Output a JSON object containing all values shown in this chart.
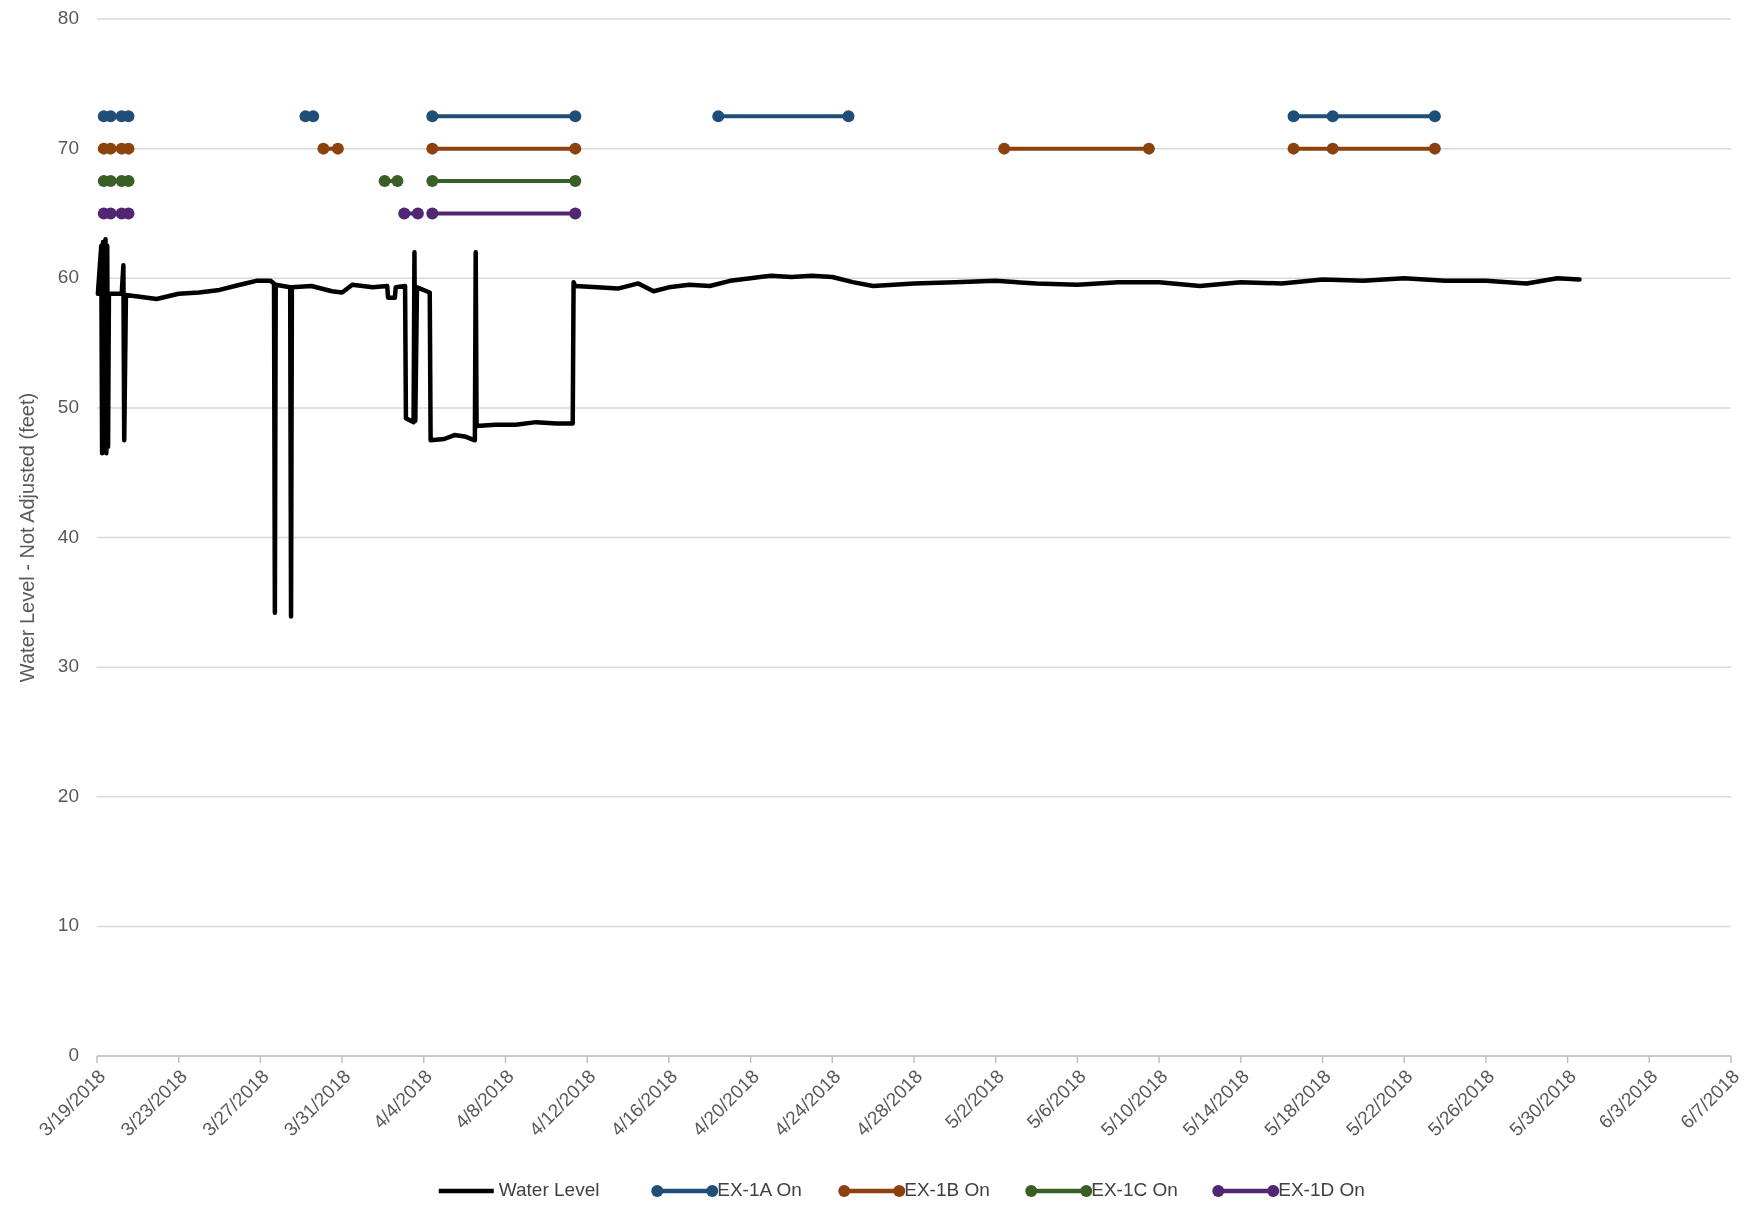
{
  "chart_data": {
    "type": "line",
    "ylabel": "Water Level - Not Adjusted  (feet)",
    "ylim": [
      0,
      80
    ],
    "yticks": [
      0,
      10,
      20,
      30,
      40,
      50,
      60,
      70,
      80
    ],
    "xlim": [
      "2018-03-19",
      "2018-06-07"
    ],
    "xticks": [
      {
        "value": "2018-03-19",
        "label": "3/19/2018"
      },
      {
        "value": "2018-03-23",
        "label": "3/23/2018"
      },
      {
        "value": "2018-03-27",
        "label": "3/27/2018"
      },
      {
        "value": "2018-03-31",
        "label": "3/31/2018"
      },
      {
        "value": "2018-04-04",
        "label": "4/4/2018"
      },
      {
        "value": "2018-04-08",
        "label": "4/8/2018"
      },
      {
        "value": "2018-04-12",
        "label": "4/12/2018"
      },
      {
        "value": "2018-04-16",
        "label": "4/16/2018"
      },
      {
        "value": "2018-04-20",
        "label": "4/20/2018"
      },
      {
        "value": "2018-04-24",
        "label": "4/24/2018"
      },
      {
        "value": "2018-04-28",
        "label": "4/28/2018"
      },
      {
        "value": "2018-05-02",
        "label": "5/2/2018"
      },
      {
        "value": "2018-05-06",
        "label": "5/6/2018"
      },
      {
        "value": "2018-05-10",
        "label": "5/10/2018"
      },
      {
        "value": "2018-05-14",
        "label": "5/14/2018"
      },
      {
        "value": "2018-05-18",
        "label": "5/18/2018"
      },
      {
        "value": "2018-05-22",
        "label": "5/22/2018"
      },
      {
        "value": "2018-05-26",
        "label": "5/26/2018"
      },
      {
        "value": "2018-05-30",
        "label": "5/30/2018"
      },
      {
        "value": "2018-06-03",
        "label": "6/3/2018"
      },
      {
        "value": "2018-06-07",
        "label": "6/7/2018"
      }
    ],
    "grid": "y",
    "legend": "bottom",
    "line_style": "solid",
    "series": [
      {
        "name": "Water Level",
        "color": "#000000",
        "marker": "none",
        "x": [
          "2018-03-19T01:00",
          "2018-03-19T05:00",
          "2018-03-19T06:00",
          "2018-03-19T07:00",
          "2018-03-19T08:00",
          "2018-03-19T10:00",
          "2018-03-19T11:00",
          "2018-03-19T12:00",
          "2018-03-19T13:00",
          "2018-03-19T14:00",
          "2018-03-20T05:00",
          "2018-03-20T07:00",
          "2018-03-20T08:00",
          "2018-03-20T10:00",
          "2018-03-21T00:00",
          "2018-03-21T22:00",
          "2018-03-23T00:00",
          "2018-03-24T00:00",
          "2018-03-25T00:00",
          "2018-03-26T00:00",
          "2018-03-26T19:00",
          "2018-03-27T12:00",
          "2018-03-27T16:00",
          "2018-03-27T17:00",
          "2018-03-27T18:00",
          "2018-03-28T11:00",
          "2018-03-28T12:00",
          "2018-03-28T13:00",
          "2018-03-29T12:00",
          "2018-03-30T12:00",
          "2018-03-31T00:00",
          "2018-03-31T12:00",
          "2018-04-01T12:00",
          "2018-04-02T05:00",
          "2018-04-02T06:00",
          "2018-04-02T14:00",
          "2018-04-02T15:00",
          "2018-04-03T02:00",
          "2018-04-03T03:00",
          "2018-04-03T12:00",
          "2018-04-03T13:00",
          "2018-04-03T14:00",
          "2018-04-03T16:00",
          "2018-04-04T07:00",
          "2018-04-04T08:00",
          "2018-04-05T00:00",
          "2018-04-05T12:00",
          "2018-04-06T00:00",
          "2018-04-06T12:00",
          "2018-04-06T13:00",
          "2018-04-06T14:00",
          "2018-04-07T12:00",
          "2018-04-08T12:00",
          "2018-04-09T12:00",
          "2018-04-10T12:00",
          "2018-04-11T07:00",
          "2018-04-11T08:00",
          "2018-04-11T10:00",
          "2018-04-12T12:00",
          "2018-04-13T12:00",
          "2018-04-14T12:00",
          "2018-04-15T06:00",
          "2018-04-16T00:00",
          "2018-04-17T00:00",
          "2018-04-18T00:00",
          "2018-04-19T00:00",
          "2018-04-20T00:00",
          "2018-04-21T00:00",
          "2018-04-22T00:00",
          "2018-04-23T00:00",
          "2018-04-24T00:00",
          "2018-04-25T00:00",
          "2018-04-26T00:00",
          "2018-04-27T00:00",
          "2018-04-28T00:00",
          "2018-04-30T00:00",
          "2018-05-02T00:00",
          "2018-05-04T00:00",
          "2018-05-06T00:00",
          "2018-05-08T00:00",
          "2018-05-10T00:00",
          "2018-05-12T00:00",
          "2018-05-14T00:00",
          "2018-05-16T00:00",
          "2018-05-18T00:00",
          "2018-05-20T00:00",
          "2018-05-22T00:00",
          "2018-05-24T00:00",
          "2018-05-26T00:00",
          "2018-05-28T00:00",
          "2018-05-29T12:00",
          "2018-05-30T14:00"
        ],
        "values": [
          58.8,
          62.5,
          46.5,
          62.8,
          46.8,
          63,
          46.5,
          62.5,
          47,
          58.8,
          58.8,
          61,
          47.5,
          58.7,
          58.6,
          58.4,
          58.8,
          58.9,
          59.1,
          59.5,
          59.8,
          59.8,
          59.6,
          34.2,
          59.5,
          59.3,
          33.9,
          59.3,
          59.4,
          59.0,
          58.9,
          59.5,
          59.3,
          59.4,
          58.5,
          58.5,
          59.3,
          59.4,
          49.2,
          48.9,
          62,
          49,
          59.3,
          58.9,
          47.5,
          47.6,
          47.9,
          47.8,
          47.5,
          62,
          48.6,
          48.7,
          48.7,
          48.9,
          48.8,
          48.8,
          59.7,
          59.4,
          59.3,
          59.2,
          59.6,
          59.0,
          59.3,
          59.5,
          59.4,
          59.8,
          60.0,
          60.2,
          60.1,
          60.2,
          60.1,
          59.7,
          59.4,
          59.5,
          59.6,
          59.7,
          59.8,
          59.6,
          59.5,
          59.7,
          59.7,
          59.4,
          59.7,
          59.6,
          59.9,
          59.8,
          60.0,
          59.8,
          59.8,
          59.6,
          60.0,
          59.9
        ]
      },
      {
        "name": "EX-1A On",
        "color": "#1f4e79",
        "marker": "circle",
        "x": [
          "2018-03-19T08:00",
          "2018-03-19T16:00",
          "2018-03-20T00:00",
          "2018-03-20T05:00",
          "2018-03-20T13:00",
          "2018-03-29T00:00",
          "2018-03-29T05:00",
          "2018-03-29T14:00",
          "2018-04-04T00:00",
          "2018-04-04T10:00",
          "2018-04-11T10:00",
          "2018-04-18T00:00",
          "2018-04-18T10:00",
          "2018-04-24T19:00",
          "2018-05-16T00:00",
          "2018-05-16T14:00",
          "2018-05-18T12:00",
          "2018-05-23T12:00"
        ],
        "values": [
          72.5,
          72.5,
          null,
          72.5,
          72.5,
          null,
          72.5,
          72.5,
          null,
          72.5,
          72.5,
          null,
          72.5,
          72.5,
          null,
          72.5,
          72.5,
          72.5
        ]
      },
      {
        "name": "EX-1B On",
        "color": "#8b420f",
        "marker": "circle",
        "x": [
          "2018-03-19T08:00",
          "2018-03-19T16:00",
          "2018-03-20T00:00",
          "2018-03-20T05:00",
          "2018-03-20T13:00",
          "2018-03-30T00:00",
          "2018-03-30T02:00",
          "2018-03-30T19:00",
          "2018-04-04T00:00",
          "2018-04-04T10:00",
          "2018-04-11T10:00",
          "2018-05-02T00:00",
          "2018-05-02T10:00",
          "2018-05-09T12:00",
          "2018-05-16T00:00",
          "2018-05-16T14:00",
          "2018-05-18T12:00",
          "2018-05-23T12:00"
        ],
        "values": [
          70,
          70,
          null,
          70,
          70,
          null,
          70,
          70,
          null,
          70,
          70,
          null,
          70,
          70,
          null,
          70,
          70,
          70
        ]
      },
      {
        "name": "EX-1C On",
        "color": "#3a5f26",
        "marker": "circle",
        "x": [
          "2018-03-19T08:00",
          "2018-03-19T16:00",
          "2018-03-20T00:00",
          "2018-03-20T05:00",
          "2018-03-20T13:00",
          "2018-04-02T00:00",
          "2018-04-02T02:00",
          "2018-04-02T17:00",
          "2018-04-04T00:00",
          "2018-04-04T10:00",
          "2018-04-11T10:00"
        ],
        "values": [
          67.5,
          67.5,
          null,
          67.5,
          67.5,
          null,
          67.5,
          67.5,
          null,
          67.5,
          67.5
        ]
      },
      {
        "name": "EX-1D On",
        "color": "#512672",
        "marker": "circle",
        "x": [
          "2018-03-19T08:00",
          "2018-03-19T16:00",
          "2018-03-20T00:00",
          "2018-03-20T05:00",
          "2018-03-20T13:00",
          "2018-04-03T00:00",
          "2018-04-03T01:00",
          "2018-04-03T17:00",
          "2018-04-04T00:00",
          "2018-04-04T10:00",
          "2018-04-11T10:00"
        ],
        "values": [
          65,
          65,
          null,
          65,
          65,
          null,
          65,
          65,
          null,
          65,
          65
        ]
      }
    ]
  }
}
